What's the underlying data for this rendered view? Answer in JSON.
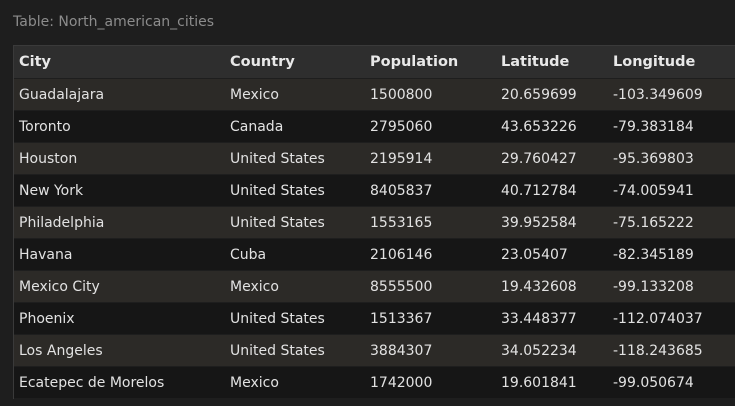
{
  "table": {
    "title": "Table: North_american_cities",
    "columns": [
      "City",
      "Country",
      "Population",
      "Latitude",
      "Longitude"
    ],
    "rows": [
      [
        "Guadalajara",
        "Mexico",
        "1500800",
        "20.659699",
        "-103.349609"
      ],
      [
        "Toronto",
        "Canada",
        "2795060",
        "43.653226",
        "-79.383184"
      ],
      [
        "Houston",
        "United States",
        "2195914",
        "29.760427",
        "-95.369803"
      ],
      [
        "New York",
        "United States",
        "8405837",
        "40.712784",
        "-74.005941"
      ],
      [
        "Philadelphia",
        "United States",
        "1553165",
        "39.952584",
        "-75.165222"
      ],
      [
        "Havana",
        "Cuba",
        "2106146",
        "23.05407",
        "-82.345189"
      ],
      [
        "Mexico City",
        "Mexico",
        "8555500",
        "19.432608",
        "-99.133208"
      ],
      [
        "Phoenix",
        "United States",
        "1513367",
        "33.448377",
        "-112.074037"
      ],
      [
        "Los Angeles",
        "United States",
        "3884307",
        "34.052234",
        "-118.243685"
      ],
      [
        "Ecatepec de Morelos",
        "Mexico",
        "1742000",
        "19.601841",
        "-99.050674"
      ]
    ]
  }
}
